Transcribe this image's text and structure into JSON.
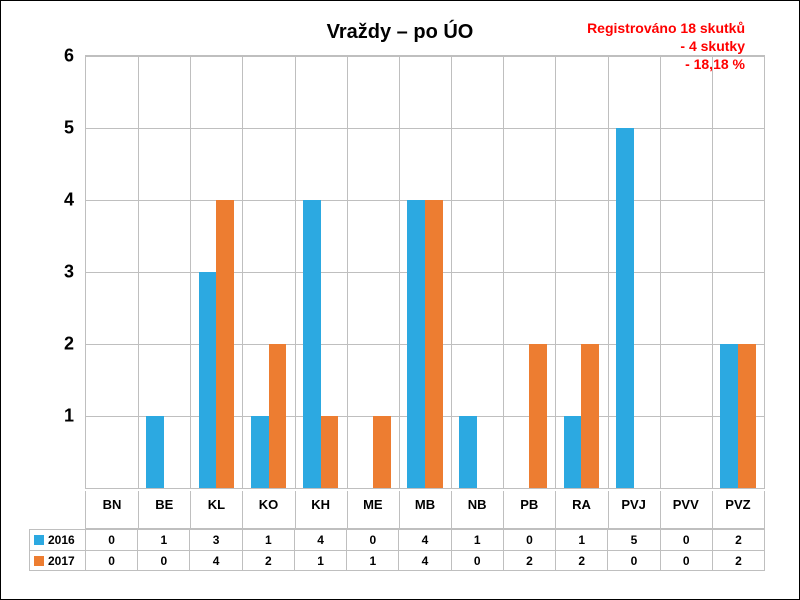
{
  "chart": {
    "type": "bar",
    "title": "Vraždy – po ÚO",
    "title_fontsize": 20,
    "background_color": "#ffffff",
    "border_color": "#000000",
    "grid_color": "#bfbfbf",
    "categories": [
      "BN",
      "BE",
      "KL",
      "KO",
      "KH",
      "ME",
      "MB",
      "NB",
      "PB",
      "RA",
      "PVJ",
      "PVV",
      "PVZ"
    ],
    "ylim": [
      0,
      6
    ],
    "ytick_min": 1,
    "ytick_step": 1,
    "ytick_fontsize": 18,
    "xtick_fontsize": 13,
    "bar_width": 0.34,
    "series": [
      {
        "name": "2016",
        "color": "#2ca9e1",
        "values": [
          0,
          1,
          3,
          1,
          4,
          0,
          4,
          1,
          0,
          1,
          5,
          0,
          2
        ]
      },
      {
        "name": "2017",
        "color": "#ed7d31",
        "values": [
          0,
          0,
          4,
          2,
          1,
          1,
          4,
          0,
          2,
          2,
          0,
          0,
          2
        ]
      }
    ],
    "annotation": {
      "color": "#ff0000",
      "fontsize": 14,
      "line1": "Registrováno  18 skutků",
      "line2": "- 4 skutky",
      "line3": "- 18,18 %"
    },
    "table_fontsize": 12
  }
}
